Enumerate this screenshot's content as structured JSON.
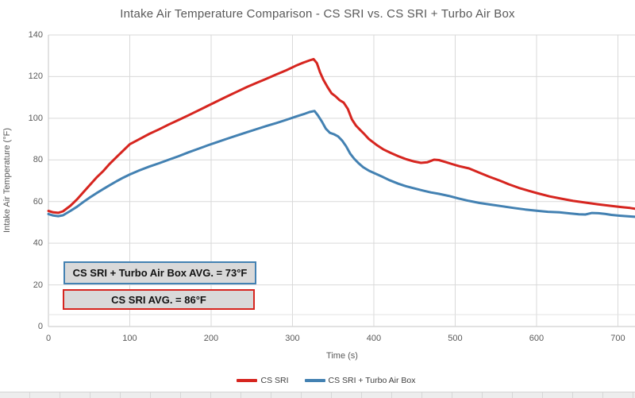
{
  "chart_data": {
    "type": "line",
    "title": "Intake Air Temperature Comparison - CS SRI vs. CS SRI + Turbo Air Box",
    "xlabel": "Time (s)",
    "ylabel": "Intake Air Temperature (°F)",
    "x_axis": {
      "min": 0,
      "max": 722,
      "ticks": [
        0,
        100,
        200,
        300,
        400,
        500,
        600,
        700
      ]
    },
    "y_axis": {
      "min": 0,
      "max": 140,
      "ticks": [
        0,
        20,
        40,
        60,
        80,
        100,
        120,
        140
      ]
    },
    "grid": true,
    "legend_position": "bottom",
    "colors": {
      "grid": "#d9d9d9",
      "axis": "#c6c6c6",
      "text": "#595959"
    },
    "series": [
      {
        "name": "CS SRI",
        "color": "#d6251f",
        "points": [
          [
            0,
            55.5
          ],
          [
            6,
            54.8
          ],
          [
            12,
            54.6
          ],
          [
            18,
            55.3
          ],
          [
            27,
            58
          ],
          [
            35,
            61
          ],
          [
            43,
            64.5
          ],
          [
            51,
            68
          ],
          [
            59,
            71.5
          ],
          [
            67,
            74.5
          ],
          [
            75,
            78
          ],
          [
            84,
            81.5
          ],
          [
            92,
            84.5
          ],
          [
            100,
            87.5
          ],
          [
            112,
            90
          ],
          [
            124,
            92.5
          ],
          [
            136,
            94.7
          ],
          [
            148,
            97
          ],
          [
            160,
            99.2
          ],
          [
            172,
            101.4
          ],
          [
            184,
            103.7
          ],
          [
            196,
            106
          ],
          [
            208,
            108.3
          ],
          [
            220,
            110.6
          ],
          [
            232,
            112.8
          ],
          [
            244,
            115
          ],
          [
            256,
            117
          ],
          [
            268,
            119
          ],
          [
            280,
            121
          ],
          [
            292,
            123
          ],
          [
            304,
            125.2
          ],
          [
            314,
            126.8
          ],
          [
            321,
            127.8
          ],
          [
            326,
            128.4
          ],
          [
            330,
            126.5
          ],
          [
            334,
            122
          ],
          [
            338,
            118.5
          ],
          [
            343,
            115
          ],
          [
            348,
            112
          ],
          [
            353,
            110.5
          ],
          [
            358,
            108.7
          ],
          [
            363,
            107.5
          ],
          [
            368,
            104.5
          ],
          [
            373,
            99.5
          ],
          [
            378,
            96.5
          ],
          [
            383,
            94.5
          ],
          [
            388,
            92.5
          ],
          [
            394,
            90
          ],
          [
            398,
            88.8
          ],
          [
            404,
            87
          ],
          [
            412,
            85
          ],
          [
            420,
            83.5
          ],
          [
            430,
            81.8
          ],
          [
            440,
            80.3
          ],
          [
            450,
            79.2
          ],
          [
            458,
            78.6
          ],
          [
            466,
            78.9
          ],
          [
            474,
            80.1
          ],
          [
            480,
            79.9
          ],
          [
            488,
            79
          ],
          [
            496,
            78
          ],
          [
            505,
            77
          ],
          [
            517,
            75.9
          ],
          [
            530,
            73.8
          ],
          [
            542,
            71.9
          ],
          [
            554,
            70.2
          ],
          [
            566,
            68.3
          ],
          [
            578,
            66.6
          ],
          [
            590,
            65.2
          ],
          [
            602,
            63.9
          ],
          [
            616,
            62.5
          ],
          [
            630,
            61.4
          ],
          [
            645,
            60.3
          ],
          [
            660,
            59.5
          ],
          [
            675,
            58.7
          ],
          [
            690,
            58
          ],
          [
            705,
            57.3
          ],
          [
            715,
            56.9
          ],
          [
            722,
            56.5
          ]
        ]
      },
      {
        "name": "CS SRI + Turbo Air Box",
        "color": "#4381b2",
        "points": [
          [
            0,
            54
          ],
          [
            6,
            53.3
          ],
          [
            12,
            53
          ],
          [
            18,
            53.4
          ],
          [
            27,
            55.5
          ],
          [
            35,
            57.5
          ],
          [
            43,
            59.8
          ],
          [
            51,
            62
          ],
          [
            59,
            64
          ],
          [
            67,
            65.9
          ],
          [
            75,
            67.8
          ],
          [
            84,
            69.8
          ],
          [
            92,
            71.5
          ],
          [
            100,
            73
          ],
          [
            112,
            75
          ],
          [
            124,
            76.8
          ],
          [
            136,
            78.4
          ],
          [
            148,
            80.1
          ],
          [
            160,
            81.8
          ],
          [
            172,
            83.6
          ],
          [
            184,
            85.3
          ],
          [
            196,
            87
          ],
          [
            208,
            88.6
          ],
          [
            220,
            90.2
          ],
          [
            232,
            91.8
          ],
          [
            244,
            93.3
          ],
          [
            256,
            94.8
          ],
          [
            268,
            96.3
          ],
          [
            280,
            97.7
          ],
          [
            292,
            99.2
          ],
          [
            304,
            100.8
          ],
          [
            314,
            102
          ],
          [
            321,
            103
          ],
          [
            327,
            103.5
          ],
          [
            331,
            101.5
          ],
          [
            336,
            98.5
          ],
          [
            341,
            95
          ],
          [
            346,
            93
          ],
          [
            351,
            92.3
          ],
          [
            356,
            91.3
          ],
          [
            361,
            89.3
          ],
          [
            366,
            86.5
          ],
          [
            371,
            83
          ],
          [
            376,
            80.5
          ],
          [
            381,
            78.5
          ],
          [
            387,
            76.5
          ],
          [
            394,
            74.8
          ],
          [
            401,
            73.6
          ],
          [
            410,
            72
          ],
          [
            419,
            70.3
          ],
          [
            430,
            68.6
          ],
          [
            440,
            67.3
          ],
          [
            450,
            66.3
          ],
          [
            460,
            65.3
          ],
          [
            470,
            64.4
          ],
          [
            480,
            63.7
          ],
          [
            492,
            62.7
          ],
          [
            504,
            61.5
          ],
          [
            517,
            60.3
          ],
          [
            530,
            59.3
          ],
          [
            544,
            58.5
          ],
          [
            558,
            57.7
          ],
          [
            572,
            56.9
          ],
          [
            586,
            56.2
          ],
          [
            600,
            55.6
          ],
          [
            614,
            55.1
          ],
          [
            628,
            54.8
          ],
          [
            642,
            54.3
          ],
          [
            652,
            53.9
          ],
          [
            660,
            53.8
          ],
          [
            668,
            54.5
          ],
          [
            676,
            54.4
          ],
          [
            684,
            54.1
          ],
          [
            692,
            53.6
          ],
          [
            702,
            53.2
          ],
          [
            712,
            52.9
          ],
          [
            722,
            52.7
          ]
        ]
      }
    ]
  },
  "annotations": [
    {
      "text": "CS SRI + Turbo Air Box AVG. = 73°F",
      "border_color": "#4381b2",
      "fill": "#d9d9d9"
    },
    {
      "text": "CS SRI AVG. = 86°F",
      "border_color": "#d6251f",
      "fill": "#d9d9d9"
    }
  ]
}
